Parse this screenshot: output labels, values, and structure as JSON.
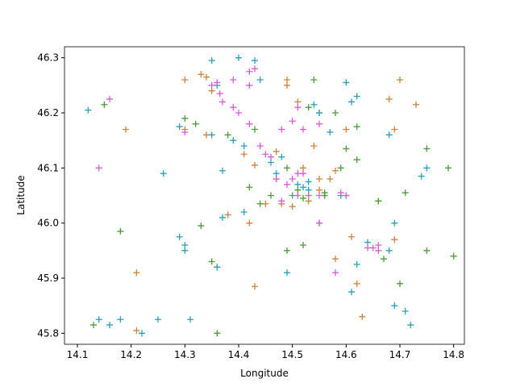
{
  "chart_data": {
    "type": "scatter",
    "x_label": "Longitude",
    "y_label": "Latitude",
    "xlim": [
      14.076,
      14.82
    ],
    "ylim": [
      45.78,
      46.32
    ],
    "xticks": [
      14.1,
      14.2,
      14.3,
      14.4,
      14.5,
      14.6,
      14.7,
      14.8
    ],
    "yticks": [
      45.8,
      45.9,
      {
        "value": 46.0,
        "label": "46.0"
      },
      46.1,
      46.2,
      46.3
    ],
    "grid": false,
    "marker": "+",
    "series": [
      {
        "color": "#d0823a",
        "x": [
          14.33,
          14.34,
          14.3,
          14.35,
          14.49,
          14.49,
          14.7,
          14.68,
          14.73,
          14.19,
          14.34,
          14.41,
          14.43,
          14.47,
          14.52,
          14.55,
          14.58,
          14.47,
          14.5,
          14.48,
          14.53,
          14.55,
          14.56,
          14.45,
          14.42,
          14.38,
          14.61,
          14.58,
          14.62,
          14.69,
          14.21,
          14.21,
          14.43,
          14.63,
          14.66,
          14.6,
          14.69,
          14.36,
          14.3,
          14.57,
          14.51,
          14.54
        ],
        "values": [
          46.27,
          46.265,
          46.26,
          46.24,
          46.26,
          46.25,
          46.26,
          46.225,
          46.215,
          46.17,
          46.16,
          46.125,
          46.105,
          46.13,
          46.1,
          46.08,
          46.095,
          46.08,
          46.03,
          46.035,
          46.04,
          46.06,
          46.05,
          46.035,
          46.0,
          46.015,
          45.975,
          45.935,
          45.89,
          45.97,
          45.91,
          45.805,
          45.885,
          45.83,
          46.04,
          46.17,
          46.17,
          45.92,
          46.17,
          46.08,
          46.22,
          46.14
        ]
      },
      {
        "color": "#4c9a3a",
        "x": [
          14.54,
          14.15,
          14.3,
          14.32,
          14.38,
          14.43,
          14.53,
          14.55,
          14.58,
          14.62,
          14.6,
          14.62,
          14.59,
          14.51,
          14.53,
          14.56,
          14.6,
          14.49,
          14.52,
          14.44,
          14.33,
          14.18,
          14.13,
          14.36,
          14.7,
          14.75,
          14.71,
          14.75,
          14.79,
          14.8,
          14.67,
          14.46,
          14.49,
          14.52,
          14.42,
          14.66,
          14.35,
          14.56
        ],
        "values": [
          46.26,
          46.215,
          46.19,
          46.18,
          46.16,
          46.17,
          46.21,
          46.2,
          46.2,
          46.175,
          46.135,
          46.115,
          46.1,
          46.06,
          46.05,
          46.055,
          46.05,
          45.95,
          45.96,
          46.035,
          45.995,
          45.985,
          45.815,
          45.8,
          45.89,
          45.95,
          46.055,
          46.135,
          46.1,
          45.94,
          45.935,
          46.05,
          46.1,
          46.045,
          46.065,
          46.04,
          45.93,
          46.05
        ]
      },
      {
        "color": "#2a9fba",
        "x": [
          14.35,
          14.4,
          14.43,
          14.12,
          14.29,
          14.35,
          14.39,
          14.41,
          14.26,
          14.37,
          14.46,
          14.48,
          14.47,
          14.51,
          14.53,
          14.52,
          14.5,
          14.53,
          14.55,
          14.57,
          14.6,
          14.61,
          14.62,
          14.68,
          14.74,
          14.75,
          14.69,
          14.64,
          14.62,
          14.61,
          14.68,
          14.69,
          14.71,
          14.72,
          14.41,
          14.37,
          14.29,
          14.3,
          14.3,
          14.14,
          14.16,
          14.18,
          14.22,
          14.25,
          14.31,
          14.36,
          14.49,
          14.55,
          14.59,
          14.54,
          14.44,
          14.36
        ],
        "values": [
          46.295,
          46.3,
          46.295,
          46.205,
          46.175,
          46.16,
          46.15,
          46.14,
          46.09,
          46.095,
          46.11,
          46.12,
          46.09,
          46.07,
          46.075,
          46.065,
          46.05,
          46.06,
          46.2,
          46.165,
          46.255,
          46.22,
          46.23,
          46.16,
          46.085,
          46.1,
          46.0,
          45.965,
          45.925,
          45.875,
          45.95,
          45.85,
          45.84,
          45.815,
          46.02,
          46.01,
          45.975,
          45.96,
          45.95,
          45.825,
          45.815,
          45.825,
          45.8,
          45.825,
          45.825,
          45.92,
          45.91,
          46.0,
          46.05,
          46.215,
          46.26,
          46.25
        ]
      },
      {
        "color": "#d95bd9",
        "x": [
          14.36,
          14.35,
          14.365,
          14.37,
          14.39,
          14.42,
          14.43,
          14.42,
          14.16,
          14.14,
          14.3,
          14.39,
          14.4,
          14.42,
          14.44,
          14.45,
          14.46,
          14.48,
          14.5,
          14.51,
          14.52,
          14.55,
          14.51,
          14.52,
          14.5,
          14.47,
          14.49,
          14.51,
          14.53,
          14.55,
          14.59,
          14.6,
          14.64,
          14.65,
          14.66,
          14.66,
          14.55,
          14.58,
          14.48
        ],
        "values": [
          46.255,
          46.25,
          46.235,
          46.22,
          46.26,
          46.275,
          46.28,
          46.25,
          46.225,
          46.1,
          46.165,
          46.21,
          46.2,
          46.18,
          46.14,
          46.125,
          46.12,
          46.17,
          46.185,
          46.21,
          46.17,
          46.18,
          46.09,
          46.09,
          46.08,
          46.08,
          46.07,
          46.05,
          46.05,
          46.05,
          46.055,
          46.05,
          45.955,
          45.955,
          45.96,
          45.95,
          46.0,
          45.91,
          46.04
        ]
      }
    ]
  }
}
